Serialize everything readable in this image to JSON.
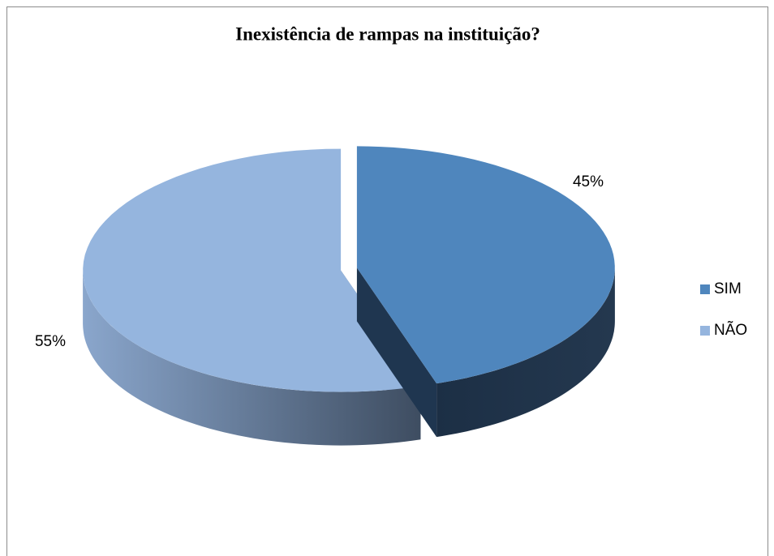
{
  "chart_data": {
    "type": "pie3d",
    "title": "Inexistência de rampas na instituição?",
    "categories": [
      "SIM",
      "NÃO"
    ],
    "values": [
      45,
      55
    ],
    "value_labels": [
      "45%",
      "55%"
    ],
    "colors": [
      "#4f86bd",
      "#95b5de"
    ],
    "legend": "right"
  }
}
